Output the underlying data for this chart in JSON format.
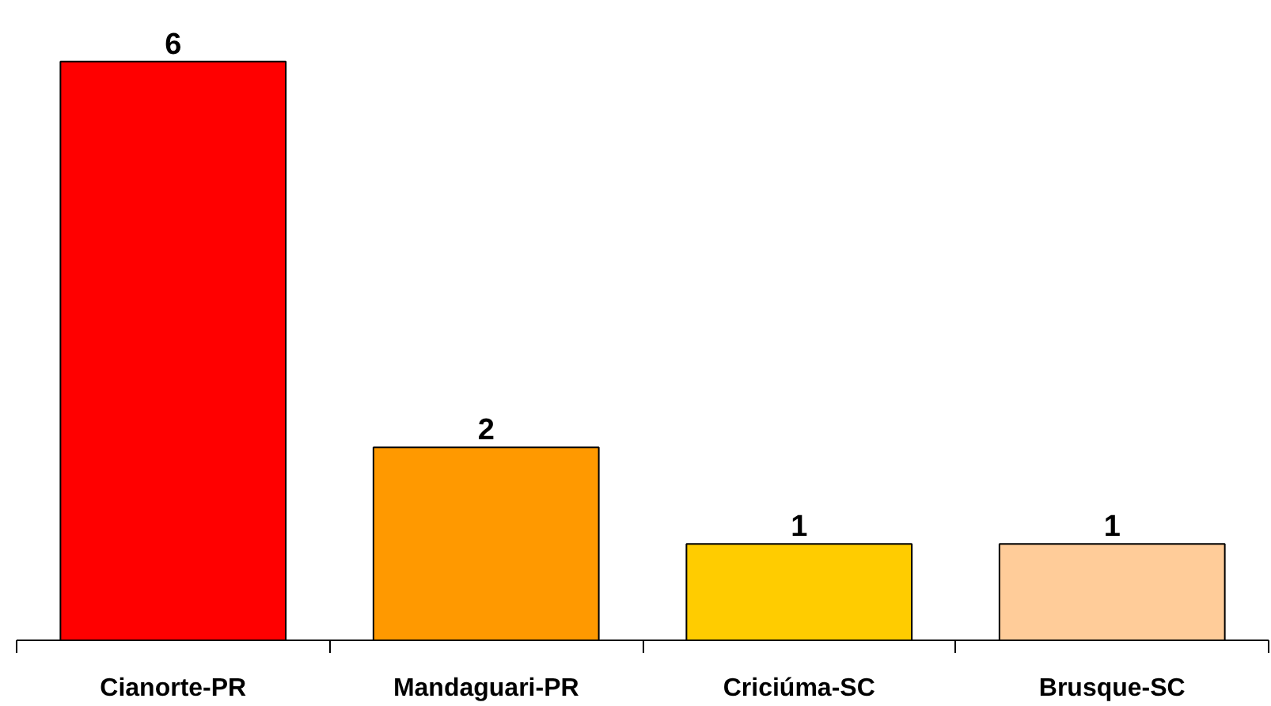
{
  "chart_data": {
    "type": "bar",
    "categories": [
      "Cianorte-PR",
      "Mandaguari-PR",
      "Criciúma-SC",
      "Brusque-SC"
    ],
    "values": [
      6,
      2,
      1,
      1
    ],
    "colors": [
      "#ff0000",
      "#ff9900",
      "#ffcc00",
      "#ffcc99"
    ],
    "data_labels": true
  }
}
